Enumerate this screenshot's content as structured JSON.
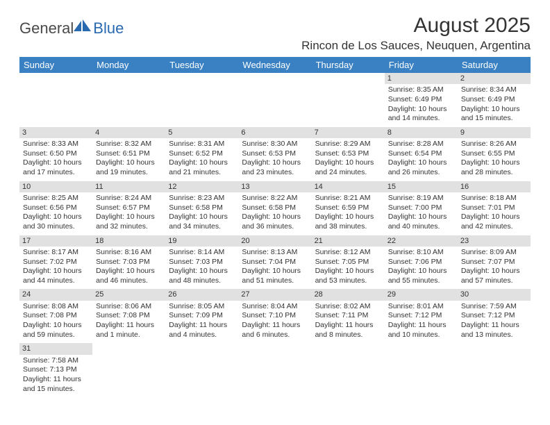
{
  "logo": {
    "text1": "General",
    "text2": "Blue"
  },
  "title": "August 2025",
  "location": "Rincon de Los Sauces, Neuquen, Argentina",
  "colors": {
    "header_bg": "#3a81c4",
    "header_fg": "#ffffff",
    "daynum_bg": "#e1e1e1",
    "text": "#333333",
    "logo_blue": "#2969b0"
  },
  "typography": {
    "title_fontsize": 30,
    "location_fontsize": 17,
    "header_fontsize": 13,
    "cell_fontsize": 10.5,
    "logo_fontsize": 22
  },
  "weekdays": [
    "Sunday",
    "Monday",
    "Tuesday",
    "Wednesday",
    "Thursday",
    "Friday",
    "Saturday"
  ],
  "weeks": [
    [
      {
        "empty": true
      },
      {
        "empty": true
      },
      {
        "empty": true
      },
      {
        "empty": true
      },
      {
        "empty": true
      },
      {
        "day": "1",
        "sunrise": "Sunrise: 8:35 AM",
        "sunset": "Sunset: 6:49 PM",
        "dl1": "Daylight: 10 hours",
        "dl2": "and 14 minutes."
      },
      {
        "day": "2",
        "sunrise": "Sunrise: 8:34 AM",
        "sunset": "Sunset: 6:49 PM",
        "dl1": "Daylight: 10 hours",
        "dl2": "and 15 minutes."
      }
    ],
    [
      {
        "day": "3",
        "sunrise": "Sunrise: 8:33 AM",
        "sunset": "Sunset: 6:50 PM",
        "dl1": "Daylight: 10 hours",
        "dl2": "and 17 minutes."
      },
      {
        "day": "4",
        "sunrise": "Sunrise: 8:32 AM",
        "sunset": "Sunset: 6:51 PM",
        "dl1": "Daylight: 10 hours",
        "dl2": "and 19 minutes."
      },
      {
        "day": "5",
        "sunrise": "Sunrise: 8:31 AM",
        "sunset": "Sunset: 6:52 PM",
        "dl1": "Daylight: 10 hours",
        "dl2": "and 21 minutes."
      },
      {
        "day": "6",
        "sunrise": "Sunrise: 8:30 AM",
        "sunset": "Sunset: 6:53 PM",
        "dl1": "Daylight: 10 hours",
        "dl2": "and 23 minutes."
      },
      {
        "day": "7",
        "sunrise": "Sunrise: 8:29 AM",
        "sunset": "Sunset: 6:53 PM",
        "dl1": "Daylight: 10 hours",
        "dl2": "and 24 minutes."
      },
      {
        "day": "8",
        "sunrise": "Sunrise: 8:28 AM",
        "sunset": "Sunset: 6:54 PM",
        "dl1": "Daylight: 10 hours",
        "dl2": "and 26 minutes."
      },
      {
        "day": "9",
        "sunrise": "Sunrise: 8:26 AM",
        "sunset": "Sunset: 6:55 PM",
        "dl1": "Daylight: 10 hours",
        "dl2": "and 28 minutes."
      }
    ],
    [
      {
        "day": "10",
        "sunrise": "Sunrise: 8:25 AM",
        "sunset": "Sunset: 6:56 PM",
        "dl1": "Daylight: 10 hours",
        "dl2": "and 30 minutes."
      },
      {
        "day": "11",
        "sunrise": "Sunrise: 8:24 AM",
        "sunset": "Sunset: 6:57 PM",
        "dl1": "Daylight: 10 hours",
        "dl2": "and 32 minutes."
      },
      {
        "day": "12",
        "sunrise": "Sunrise: 8:23 AM",
        "sunset": "Sunset: 6:58 PM",
        "dl1": "Daylight: 10 hours",
        "dl2": "and 34 minutes."
      },
      {
        "day": "13",
        "sunrise": "Sunrise: 8:22 AM",
        "sunset": "Sunset: 6:58 PM",
        "dl1": "Daylight: 10 hours",
        "dl2": "and 36 minutes."
      },
      {
        "day": "14",
        "sunrise": "Sunrise: 8:21 AM",
        "sunset": "Sunset: 6:59 PM",
        "dl1": "Daylight: 10 hours",
        "dl2": "and 38 minutes."
      },
      {
        "day": "15",
        "sunrise": "Sunrise: 8:19 AM",
        "sunset": "Sunset: 7:00 PM",
        "dl1": "Daylight: 10 hours",
        "dl2": "and 40 minutes."
      },
      {
        "day": "16",
        "sunrise": "Sunrise: 8:18 AM",
        "sunset": "Sunset: 7:01 PM",
        "dl1": "Daylight: 10 hours",
        "dl2": "and 42 minutes."
      }
    ],
    [
      {
        "day": "17",
        "sunrise": "Sunrise: 8:17 AM",
        "sunset": "Sunset: 7:02 PM",
        "dl1": "Daylight: 10 hours",
        "dl2": "and 44 minutes."
      },
      {
        "day": "18",
        "sunrise": "Sunrise: 8:16 AM",
        "sunset": "Sunset: 7:03 PM",
        "dl1": "Daylight: 10 hours",
        "dl2": "and 46 minutes."
      },
      {
        "day": "19",
        "sunrise": "Sunrise: 8:14 AM",
        "sunset": "Sunset: 7:03 PM",
        "dl1": "Daylight: 10 hours",
        "dl2": "and 48 minutes."
      },
      {
        "day": "20",
        "sunrise": "Sunrise: 8:13 AM",
        "sunset": "Sunset: 7:04 PM",
        "dl1": "Daylight: 10 hours",
        "dl2": "and 51 minutes."
      },
      {
        "day": "21",
        "sunrise": "Sunrise: 8:12 AM",
        "sunset": "Sunset: 7:05 PM",
        "dl1": "Daylight: 10 hours",
        "dl2": "and 53 minutes."
      },
      {
        "day": "22",
        "sunrise": "Sunrise: 8:10 AM",
        "sunset": "Sunset: 7:06 PM",
        "dl1": "Daylight: 10 hours",
        "dl2": "and 55 minutes."
      },
      {
        "day": "23",
        "sunrise": "Sunrise: 8:09 AM",
        "sunset": "Sunset: 7:07 PM",
        "dl1": "Daylight: 10 hours",
        "dl2": "and 57 minutes."
      }
    ],
    [
      {
        "day": "24",
        "sunrise": "Sunrise: 8:08 AM",
        "sunset": "Sunset: 7:08 PM",
        "dl1": "Daylight: 10 hours",
        "dl2": "and 59 minutes."
      },
      {
        "day": "25",
        "sunrise": "Sunrise: 8:06 AM",
        "sunset": "Sunset: 7:08 PM",
        "dl1": "Daylight: 11 hours",
        "dl2": "and 1 minute."
      },
      {
        "day": "26",
        "sunrise": "Sunrise: 8:05 AM",
        "sunset": "Sunset: 7:09 PM",
        "dl1": "Daylight: 11 hours",
        "dl2": "and 4 minutes."
      },
      {
        "day": "27",
        "sunrise": "Sunrise: 8:04 AM",
        "sunset": "Sunset: 7:10 PM",
        "dl1": "Daylight: 11 hours",
        "dl2": "and 6 minutes."
      },
      {
        "day": "28",
        "sunrise": "Sunrise: 8:02 AM",
        "sunset": "Sunset: 7:11 PM",
        "dl1": "Daylight: 11 hours",
        "dl2": "and 8 minutes."
      },
      {
        "day": "29",
        "sunrise": "Sunrise: 8:01 AM",
        "sunset": "Sunset: 7:12 PM",
        "dl1": "Daylight: 11 hours",
        "dl2": "and 10 minutes."
      },
      {
        "day": "30",
        "sunrise": "Sunrise: 7:59 AM",
        "sunset": "Sunset: 7:12 PM",
        "dl1": "Daylight: 11 hours",
        "dl2": "and 13 minutes."
      }
    ],
    [
      {
        "day": "31",
        "sunrise": "Sunrise: 7:58 AM",
        "sunset": "Sunset: 7:13 PM",
        "dl1": "Daylight: 11 hours",
        "dl2": "and 15 minutes."
      },
      {
        "empty": true
      },
      {
        "empty": true
      },
      {
        "empty": true
      },
      {
        "empty": true
      },
      {
        "empty": true
      },
      {
        "empty": true
      }
    ]
  ]
}
